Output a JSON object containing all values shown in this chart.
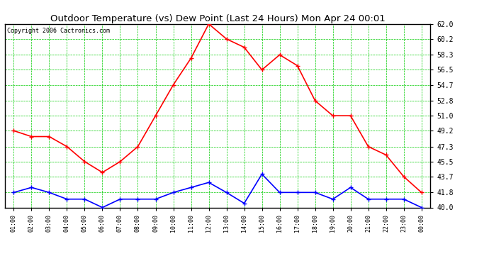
{
  "title": "Outdoor Temperature (vs) Dew Point (Last 24 Hours) Mon Apr 24 00:01",
  "copyright": "Copyright 2006 Cactronics.com",
  "x_labels": [
    "01:00",
    "02:00",
    "03:00",
    "04:00",
    "05:00",
    "06:00",
    "07:00",
    "08:00",
    "09:00",
    "10:00",
    "11:00",
    "12:00",
    "13:00",
    "14:00",
    "15:00",
    "16:00",
    "17:00",
    "18:00",
    "19:00",
    "20:00",
    "21:00",
    "22:00",
    "23:00",
    "00:00"
  ],
  "temp_data": [
    49.2,
    48.5,
    48.5,
    47.3,
    45.5,
    44.2,
    45.5,
    47.3,
    51.0,
    54.7,
    57.9,
    62.0,
    60.2,
    59.2,
    56.5,
    58.3,
    57.0,
    52.8,
    51.0,
    51.0,
    47.3,
    46.3,
    43.7,
    41.8
  ],
  "dew_data": [
    41.8,
    42.4,
    41.8,
    41.0,
    41.0,
    40.0,
    41.0,
    41.0,
    41.0,
    41.8,
    42.4,
    43.0,
    41.8,
    40.5,
    44.0,
    41.8,
    41.8,
    41.8,
    41.0,
    42.4,
    41.0,
    41.0,
    41.0,
    40.0
  ],
  "temp_color": "#ff0000",
  "dew_color": "#0000ff",
  "bg_color": "#ffffff",
  "plot_bg_color": "#ffffff",
  "grid_color": "#00cc00",
  "border_color": "#000000",
  "title_color": "#000000",
  "y_min": 40.0,
  "y_max": 62.0,
  "y_ticks": [
    40.0,
    41.8,
    43.7,
    45.5,
    47.3,
    49.2,
    51.0,
    52.8,
    54.7,
    56.5,
    58.3,
    60.2,
    62.0
  ],
  "marker_size": 4,
  "line_width": 1.2,
  "title_fontsize": 9.5,
  "copyright_fontsize": 6,
  "tick_fontsize": 7,
  "xtick_fontsize": 6
}
